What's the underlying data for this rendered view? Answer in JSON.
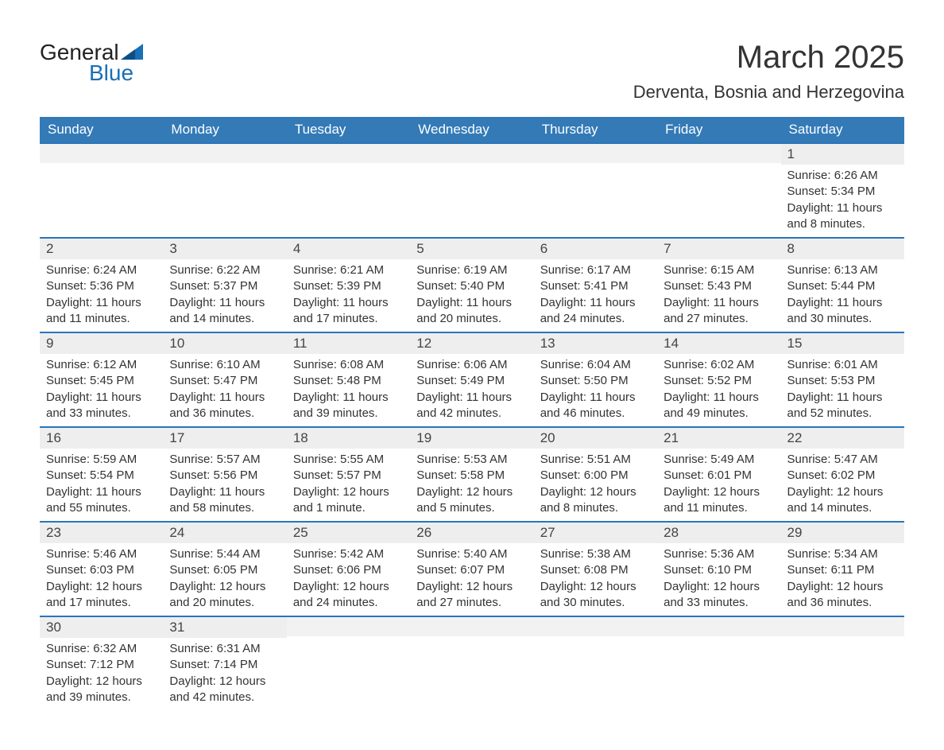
{
  "logo": {
    "word1": "General",
    "word2": "Blue",
    "accent_color": "#1a6fb5",
    "text_color": "#222222"
  },
  "title": "March 2025",
  "location": "Derventa, Bosnia and Herzegovina",
  "colors": {
    "header_bg": "#337ab7",
    "header_text": "#ffffff",
    "divider": "#2a75bb",
    "daynum_bg": "#eeeeee",
    "empty_bg": "#f2f2f2",
    "text": "#333333",
    "page_bg": "#ffffff"
  },
  "day_names": [
    "Sunday",
    "Monday",
    "Tuesday",
    "Wednesday",
    "Thursday",
    "Friday",
    "Saturday"
  ],
  "weeks": [
    [
      {
        "blank": true
      },
      {
        "blank": true
      },
      {
        "blank": true
      },
      {
        "blank": true
      },
      {
        "blank": true
      },
      {
        "blank": true
      },
      {
        "num": "1",
        "sunrise": "Sunrise: 6:26 AM",
        "sunset": "Sunset: 5:34 PM",
        "day1": "Daylight: 11 hours",
        "day2": "and 8 minutes."
      }
    ],
    [
      {
        "num": "2",
        "sunrise": "Sunrise: 6:24 AM",
        "sunset": "Sunset: 5:36 PM",
        "day1": "Daylight: 11 hours",
        "day2": "and 11 minutes."
      },
      {
        "num": "3",
        "sunrise": "Sunrise: 6:22 AM",
        "sunset": "Sunset: 5:37 PM",
        "day1": "Daylight: 11 hours",
        "day2": "and 14 minutes."
      },
      {
        "num": "4",
        "sunrise": "Sunrise: 6:21 AM",
        "sunset": "Sunset: 5:39 PM",
        "day1": "Daylight: 11 hours",
        "day2": "and 17 minutes."
      },
      {
        "num": "5",
        "sunrise": "Sunrise: 6:19 AM",
        "sunset": "Sunset: 5:40 PM",
        "day1": "Daylight: 11 hours",
        "day2": "and 20 minutes."
      },
      {
        "num": "6",
        "sunrise": "Sunrise: 6:17 AM",
        "sunset": "Sunset: 5:41 PM",
        "day1": "Daylight: 11 hours",
        "day2": "and 24 minutes."
      },
      {
        "num": "7",
        "sunrise": "Sunrise: 6:15 AM",
        "sunset": "Sunset: 5:43 PM",
        "day1": "Daylight: 11 hours",
        "day2": "and 27 minutes."
      },
      {
        "num": "8",
        "sunrise": "Sunrise: 6:13 AM",
        "sunset": "Sunset: 5:44 PM",
        "day1": "Daylight: 11 hours",
        "day2": "and 30 minutes."
      }
    ],
    [
      {
        "num": "9",
        "sunrise": "Sunrise: 6:12 AM",
        "sunset": "Sunset: 5:45 PM",
        "day1": "Daylight: 11 hours",
        "day2": "and 33 minutes."
      },
      {
        "num": "10",
        "sunrise": "Sunrise: 6:10 AM",
        "sunset": "Sunset: 5:47 PM",
        "day1": "Daylight: 11 hours",
        "day2": "and 36 minutes."
      },
      {
        "num": "11",
        "sunrise": "Sunrise: 6:08 AM",
        "sunset": "Sunset: 5:48 PM",
        "day1": "Daylight: 11 hours",
        "day2": "and 39 minutes."
      },
      {
        "num": "12",
        "sunrise": "Sunrise: 6:06 AM",
        "sunset": "Sunset: 5:49 PM",
        "day1": "Daylight: 11 hours",
        "day2": "and 42 minutes."
      },
      {
        "num": "13",
        "sunrise": "Sunrise: 6:04 AM",
        "sunset": "Sunset: 5:50 PM",
        "day1": "Daylight: 11 hours",
        "day2": "and 46 minutes."
      },
      {
        "num": "14",
        "sunrise": "Sunrise: 6:02 AM",
        "sunset": "Sunset: 5:52 PM",
        "day1": "Daylight: 11 hours",
        "day2": "and 49 minutes."
      },
      {
        "num": "15",
        "sunrise": "Sunrise: 6:01 AM",
        "sunset": "Sunset: 5:53 PM",
        "day1": "Daylight: 11 hours",
        "day2": "and 52 minutes."
      }
    ],
    [
      {
        "num": "16",
        "sunrise": "Sunrise: 5:59 AM",
        "sunset": "Sunset: 5:54 PM",
        "day1": "Daylight: 11 hours",
        "day2": "and 55 minutes."
      },
      {
        "num": "17",
        "sunrise": "Sunrise: 5:57 AM",
        "sunset": "Sunset: 5:56 PM",
        "day1": "Daylight: 11 hours",
        "day2": "and 58 minutes."
      },
      {
        "num": "18",
        "sunrise": "Sunrise: 5:55 AM",
        "sunset": "Sunset: 5:57 PM",
        "day1": "Daylight: 12 hours",
        "day2": "and 1 minute."
      },
      {
        "num": "19",
        "sunrise": "Sunrise: 5:53 AM",
        "sunset": "Sunset: 5:58 PM",
        "day1": "Daylight: 12 hours",
        "day2": "and 5 minutes."
      },
      {
        "num": "20",
        "sunrise": "Sunrise: 5:51 AM",
        "sunset": "Sunset: 6:00 PM",
        "day1": "Daylight: 12 hours",
        "day2": "and 8 minutes."
      },
      {
        "num": "21",
        "sunrise": "Sunrise: 5:49 AM",
        "sunset": "Sunset: 6:01 PM",
        "day1": "Daylight: 12 hours",
        "day2": "and 11 minutes."
      },
      {
        "num": "22",
        "sunrise": "Sunrise: 5:47 AM",
        "sunset": "Sunset: 6:02 PM",
        "day1": "Daylight: 12 hours",
        "day2": "and 14 minutes."
      }
    ],
    [
      {
        "num": "23",
        "sunrise": "Sunrise: 5:46 AM",
        "sunset": "Sunset: 6:03 PM",
        "day1": "Daylight: 12 hours",
        "day2": "and 17 minutes."
      },
      {
        "num": "24",
        "sunrise": "Sunrise: 5:44 AM",
        "sunset": "Sunset: 6:05 PM",
        "day1": "Daylight: 12 hours",
        "day2": "and 20 minutes."
      },
      {
        "num": "25",
        "sunrise": "Sunrise: 5:42 AM",
        "sunset": "Sunset: 6:06 PM",
        "day1": "Daylight: 12 hours",
        "day2": "and 24 minutes."
      },
      {
        "num": "26",
        "sunrise": "Sunrise: 5:40 AM",
        "sunset": "Sunset: 6:07 PM",
        "day1": "Daylight: 12 hours",
        "day2": "and 27 minutes."
      },
      {
        "num": "27",
        "sunrise": "Sunrise: 5:38 AM",
        "sunset": "Sunset: 6:08 PM",
        "day1": "Daylight: 12 hours",
        "day2": "and 30 minutes."
      },
      {
        "num": "28",
        "sunrise": "Sunrise: 5:36 AM",
        "sunset": "Sunset: 6:10 PM",
        "day1": "Daylight: 12 hours",
        "day2": "and 33 minutes."
      },
      {
        "num": "29",
        "sunrise": "Sunrise: 5:34 AM",
        "sunset": "Sunset: 6:11 PM",
        "day1": "Daylight: 12 hours",
        "day2": "and 36 minutes."
      }
    ],
    [
      {
        "num": "30",
        "sunrise": "Sunrise: 6:32 AM",
        "sunset": "Sunset: 7:12 PM",
        "day1": "Daylight: 12 hours",
        "day2": "and 39 minutes."
      },
      {
        "num": "31",
        "sunrise": "Sunrise: 6:31 AM",
        "sunset": "Sunset: 7:14 PM",
        "day1": "Daylight: 12 hours",
        "day2": "and 42 minutes."
      },
      {
        "blank": true
      },
      {
        "blank": true
      },
      {
        "blank": true
      },
      {
        "blank": true
      },
      {
        "blank": true
      }
    ]
  ]
}
